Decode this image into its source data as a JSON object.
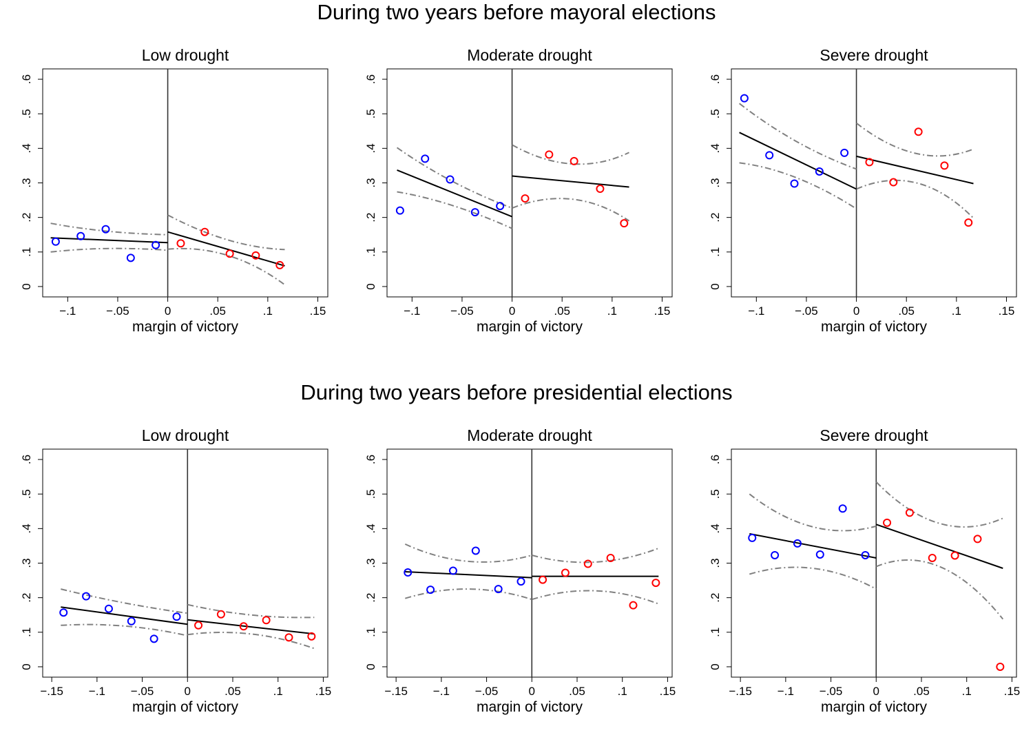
{
  "figure": {
    "sections": [
      {
        "title": "During two years before mayoral elections"
      },
      {
        "title": "During two years before presidential elections"
      }
    ]
  },
  "chart_data": [
    {
      "type": "scatter",
      "section": 0,
      "title": "Low drought",
      "xlabel": "margin of victory",
      "ylabel": "",
      "xlim": [
        -0.125,
        0.16
      ],
      "ylim": [
        -0.03,
        0.63
      ],
      "xticks": [
        -0.1,
        -0.05,
        0,
        0.05,
        0.1,
        0.15
      ],
      "xtick_labels": [
        "−.1",
        "−.05",
        "0",
        ".05",
        ".1",
        ".15"
      ],
      "yticks": [
        0,
        0.1,
        0.2,
        0.3,
        0.4,
        0.5,
        0.6
      ],
      "ytick_labels": [
        "0",
        ".1",
        ".2",
        ".3",
        ".4",
        ".5",
        ".6"
      ],
      "cutoff": 0,
      "grid": false,
      "legend": "none",
      "colors": {
        "left": "#0000ff",
        "right": "#ff0000",
        "fit": "#000000",
        "ci": "#808080"
      },
      "left_points": [
        [
          -0.112,
          0.13
        ],
        [
          -0.087,
          0.146
        ],
        [
          -0.062,
          0.166
        ],
        [
          -0.037,
          0.083
        ],
        [
          -0.012,
          0.12
        ]
      ],
      "right_points": [
        [
          0.013,
          0.125
        ],
        [
          0.037,
          0.158
        ],
        [
          0.062,
          0.095
        ],
        [
          0.088,
          0.09
        ],
        [
          0.112,
          0.062
        ]
      ],
      "left_fit": [
        [
          -0.117,
          0.141
        ],
        [
          0,
          0.127
        ]
      ],
      "right_fit": [
        [
          0,
          0.158
        ],
        [
          0.117,
          0.06
        ]
      ],
      "left_ci_upper": [
        [
          -0.117,
          0.183
        ],
        [
          -0.06,
          0.16
        ],
        [
          0,
          0.15
        ]
      ],
      "left_ci_lower": [
        [
          -0.117,
          0.1
        ],
        [
          -0.06,
          0.11
        ],
        [
          0,
          0.105
        ]
      ],
      "right_ci_upper": [
        [
          0,
          0.207
        ],
        [
          0.06,
          0.135
        ],
        [
          0.117,
          0.107
        ]
      ],
      "right_ci_lower": [
        [
          0,
          0.108
        ],
        [
          0.06,
          0.09
        ],
        [
          0.117,
          0.005
        ]
      ]
    },
    {
      "type": "scatter",
      "section": 0,
      "title": "Moderate drought",
      "xlabel": "margin of victory",
      "ylabel": "",
      "xlim": [
        -0.125,
        0.16
      ],
      "ylim": [
        -0.03,
        0.63
      ],
      "xticks": [
        -0.1,
        -0.05,
        0,
        0.05,
        0.1,
        0.15
      ],
      "xtick_labels": [
        "−.1",
        "−.05",
        "0",
        ".05",
        ".1",
        ".15"
      ],
      "yticks": [
        0,
        0.1,
        0.2,
        0.3,
        0.4,
        0.5,
        0.6
      ],
      "ytick_labels": [
        "0",
        ".1",
        ".2",
        ".3",
        ".4",
        ".5",
        ".6"
      ],
      "cutoff": 0,
      "grid": false,
      "legend": "none",
      "colors": {
        "left": "#0000ff",
        "right": "#ff0000",
        "fit": "#000000",
        "ci": "#808080"
      },
      "left_points": [
        [
          -0.112,
          0.22
        ],
        [
          -0.087,
          0.37
        ],
        [
          -0.062,
          0.31
        ],
        [
          -0.037,
          0.215
        ],
        [
          -0.012,
          0.233
        ]
      ],
      "right_points": [
        [
          0.013,
          0.255
        ],
        [
          0.037,
          0.382
        ],
        [
          0.062,
          0.363
        ],
        [
          0.088,
          0.283
        ],
        [
          0.112,
          0.183
        ]
      ],
      "left_fit": [
        [
          -0.115,
          0.337
        ],
        [
          0,
          0.202
        ]
      ],
      "right_fit": [
        [
          0,
          0.32
        ],
        [
          0.117,
          0.288
        ]
      ],
      "left_ci_upper": [
        [
          -0.115,
          0.402
        ],
        [
          -0.06,
          0.305
        ],
        [
          0,
          0.227
        ]
      ],
      "left_ci_lower": [
        [
          -0.115,
          0.274
        ],
        [
          -0.06,
          0.235
        ],
        [
          0,
          0.168
        ]
      ],
      "right_ci_upper": [
        [
          0,
          0.41
        ],
        [
          0.06,
          0.355
        ],
        [
          0.117,
          0.388
        ]
      ],
      "right_ci_lower": [
        [
          0,
          0.227
        ],
        [
          0.06,
          0.253
        ],
        [
          0.117,
          0.19
        ]
      ]
    },
    {
      "type": "scatter",
      "section": 0,
      "title": "Severe drought",
      "xlabel": "margin of victory",
      "ylabel": "",
      "xlim": [
        -0.125,
        0.16
      ],
      "ylim": [
        -0.03,
        0.63
      ],
      "xticks": [
        -0.1,
        -0.05,
        0,
        0.05,
        0.1,
        0.15
      ],
      "xtick_labels": [
        "−.1",
        "−.05",
        "0",
        ".05",
        ".1",
        ".15"
      ],
      "yticks": [
        0,
        0.1,
        0.2,
        0.3,
        0.4,
        0.5,
        0.6
      ],
      "ytick_labels": [
        "0",
        ".1",
        ".2",
        ".3",
        ".4",
        ".5",
        ".6"
      ],
      "cutoff": 0,
      "grid": false,
      "legend": "none",
      "colors": {
        "left": "#0000ff",
        "right": "#ff0000",
        "fit": "#000000",
        "ci": "#808080"
      },
      "left_points": [
        [
          -0.112,
          0.545
        ],
        [
          -0.087,
          0.38
        ],
        [
          -0.062,
          0.298
        ],
        [
          -0.037,
          0.333
        ],
        [
          -0.012,
          0.387
        ]
      ],
      "right_points": [
        [
          0.013,
          0.36
        ],
        [
          0.037,
          0.302
        ],
        [
          0.062,
          0.448
        ],
        [
          0.088,
          0.35
        ],
        [
          0.112,
          0.185
        ]
      ],
      "left_fit": [
        [
          -0.117,
          0.446
        ],
        [
          0,
          0.282
        ]
      ],
      "right_fit": [
        [
          0,
          0.377
        ],
        [
          0.117,
          0.298
        ]
      ],
      "left_ci_upper": [
        [
          -0.117,
          0.53
        ],
        [
          -0.06,
          0.42
        ],
        [
          0,
          0.34
        ]
      ],
      "left_ci_lower": [
        [
          -0.117,
          0.358
        ],
        [
          -0.06,
          0.315
        ],
        [
          0,
          0.225
        ]
      ],
      "right_ci_upper": [
        [
          0,
          0.473
        ],
        [
          0.06,
          0.385
        ],
        [
          0.117,
          0.398
        ]
      ],
      "right_ci_lower": [
        [
          0,
          0.282
        ],
        [
          0.06,
          0.3
        ],
        [
          0.117,
          0.198
        ]
      ]
    },
    {
      "type": "scatter",
      "section": 1,
      "title": "Low drought",
      "xlabel": "margin of victory",
      "ylabel": "",
      "xlim": [
        -0.16,
        0.155
      ],
      "ylim": [
        -0.03,
        0.63
      ],
      "xticks": [
        -0.15,
        -0.1,
        -0.05,
        0,
        0.05,
        0.1,
        0.15
      ],
      "xtick_labels": [
        "−.15",
        "−.1",
        "−.05",
        "0",
        ".05",
        ".1",
        ".15"
      ],
      "yticks": [
        0,
        0.1,
        0.2,
        0.3,
        0.4,
        0.5,
        0.6
      ],
      "ytick_labels": [
        "0",
        ".1",
        ".2",
        ".3",
        ".4",
        ".5",
        ".6"
      ],
      "cutoff": 0,
      "grid": false,
      "legend": "none",
      "colors": {
        "left": "#0000ff",
        "right": "#ff0000",
        "fit": "#000000",
        "ci": "#808080"
      },
      "left_points": [
        [
          -0.137,
          0.157
        ],
        [
          -0.112,
          0.204
        ],
        [
          -0.087,
          0.168
        ],
        [
          -0.062,
          0.132
        ],
        [
          -0.037,
          0.081
        ],
        [
          -0.012,
          0.145
        ]
      ],
      "right_points": [
        [
          0.012,
          0.12
        ],
        [
          0.037,
          0.152
        ],
        [
          0.062,
          0.117
        ],
        [
          0.087,
          0.135
        ],
        [
          0.112,
          0.085
        ],
        [
          0.137,
          0.088
        ]
      ],
      "left_fit": [
        [
          -0.14,
          0.173
        ],
        [
          0,
          0.123
        ]
      ],
      "right_fit": [
        [
          0,
          0.136
        ],
        [
          0.14,
          0.095
        ]
      ],
      "left_ci_upper": [
        [
          -0.14,
          0.225
        ],
        [
          -0.07,
          0.185
        ],
        [
          0,
          0.155
        ]
      ],
      "left_ci_lower": [
        [
          -0.14,
          0.12
        ],
        [
          -0.07,
          0.118
        ],
        [
          0,
          0.09
        ]
      ],
      "right_ci_upper": [
        [
          0,
          0.18
        ],
        [
          0.07,
          0.15
        ],
        [
          0.14,
          0.143
        ]
      ],
      "right_ci_lower": [
        [
          0,
          0.093
        ],
        [
          0.07,
          0.095
        ],
        [
          0.14,
          0.053
        ]
      ]
    },
    {
      "type": "scatter",
      "section": 1,
      "title": "Moderate drought",
      "xlabel": "margin of victory",
      "ylabel": "",
      "xlim": [
        -0.16,
        0.155
      ],
      "ylim": [
        -0.03,
        0.63
      ],
      "xticks": [
        -0.15,
        -0.1,
        -0.05,
        0,
        0.05,
        0.1,
        0.15
      ],
      "xtick_labels": [
        "−.15",
        "−.1",
        "−.05",
        "0",
        ".05",
        ".1",
        ".15"
      ],
      "yticks": [
        0,
        0.1,
        0.2,
        0.3,
        0.4,
        0.5,
        0.6
      ],
      "ytick_labels": [
        "0",
        ".1",
        ".2",
        ".3",
        ".4",
        ".5",
        ".6"
      ],
      "cutoff": 0,
      "grid": false,
      "legend": "none",
      "colors": {
        "left": "#0000ff",
        "right": "#ff0000",
        "fit": "#000000",
        "ci": "#808080"
      },
      "left_points": [
        [
          -0.137,
          0.273
        ],
        [
          -0.112,
          0.223
        ],
        [
          -0.087,
          0.278
        ],
        [
          -0.062,
          0.336
        ],
        [
          -0.037,
          0.225
        ],
        [
          -0.012,
          0.247
        ]
      ],
      "right_points": [
        [
          0.012,
          0.252
        ],
        [
          0.037,
          0.272
        ],
        [
          0.062,
          0.298
        ],
        [
          0.087,
          0.315
        ],
        [
          0.112,
          0.178
        ],
        [
          0.137,
          0.243
        ]
      ],
      "left_fit": [
        [
          -0.14,
          0.275
        ],
        [
          0,
          0.258
        ]
      ],
      "right_fit": [
        [
          0,
          0.262
        ],
        [
          0.14,
          0.262
        ]
      ],
      "left_ci_upper": [
        [
          -0.14,
          0.355
        ],
        [
          -0.07,
          0.305
        ],
        [
          0,
          0.323
        ]
      ],
      "left_ci_lower": [
        [
          -0.14,
          0.198
        ],
        [
          -0.07,
          0.225
        ],
        [
          0,
          0.195
        ]
      ],
      "right_ci_upper": [
        [
          0,
          0.323
        ],
        [
          0.07,
          0.303
        ],
        [
          0.14,
          0.343
        ]
      ],
      "right_ci_lower": [
        [
          0,
          0.195
        ],
        [
          0.07,
          0.22
        ],
        [
          0.14,
          0.182
        ]
      ]
    },
    {
      "type": "scatter",
      "section": 1,
      "title": "Severe drought",
      "xlabel": "margin of victory",
      "ylabel": "",
      "xlim": [
        -0.16,
        0.155
      ],
      "ylim": [
        -0.03,
        0.63
      ],
      "xticks": [
        -0.15,
        -0.1,
        -0.05,
        0,
        0.05,
        0.1,
        0.15
      ],
      "xtick_labels": [
        "−.15",
        "−.1",
        "−.05",
        "0",
        ".05",
        ".1",
        ".15"
      ],
      "yticks": [
        0,
        0.1,
        0.2,
        0.3,
        0.4,
        0.5,
        0.6
      ],
      "ytick_labels": [
        "0",
        ".1",
        ".2",
        ".3",
        ".4",
        ".5",
        ".6"
      ],
      "cutoff": 0,
      "grid": false,
      "legend": "none",
      "colors": {
        "left": "#0000ff",
        "right": "#ff0000",
        "fit": "#000000",
        "ci": "#808080"
      },
      "left_points": [
        [
          -0.137,
          0.373
        ],
        [
          -0.112,
          0.323
        ],
        [
          -0.087,
          0.357
        ],
        [
          -0.062,
          0.325
        ],
        [
          -0.037,
          0.458
        ],
        [
          -0.012,
          0.323
        ]
      ],
      "right_points": [
        [
          0.012,
          0.417
        ],
        [
          0.037,
          0.446
        ],
        [
          0.062,
          0.315
        ],
        [
          0.087,
          0.322
        ],
        [
          0.112,
          0.37
        ],
        [
          0.137,
          0.0
        ]
      ],
      "left_fit": [
        [
          -0.14,
          0.385
        ],
        [
          0,
          0.315
        ]
      ],
      "right_fit": [
        [
          0,
          0.412
        ],
        [
          0.14,
          0.285
        ]
      ],
      "left_ci_upper": [
        [
          -0.14,
          0.5
        ],
        [
          -0.07,
          0.405
        ],
        [
          0,
          0.407
        ]
      ],
      "left_ci_lower": [
        [
          -0.14,
          0.268
        ],
        [
          -0.07,
          0.285
        ],
        [
          0,
          0.225
        ]
      ],
      "right_ci_upper": [
        [
          0,
          0.535
        ],
        [
          0.07,
          0.415
        ],
        [
          0.14,
          0.43
        ]
      ],
      "right_ci_lower": [
        [
          0,
          0.29
        ],
        [
          0.07,
          0.29
        ],
        [
          0.14,
          0.138
        ]
      ]
    }
  ]
}
